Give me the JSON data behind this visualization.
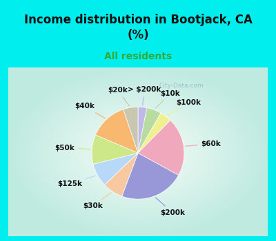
{
  "title": "Income distribution in Bootjack, CA\n(%)",
  "subtitle": "All residents",
  "title_color": "#111111",
  "subtitle_color": "#33aa33",
  "bg_cyan": "#00eeee",
  "bg_chart": "#e0f0e8",
  "watermark": "City-Data.com",
  "slices": [
    {
      "label": "> $200k",
      "value": 3,
      "color": "#c0b8e8"
    },
    {
      "label": "$10k",
      "value": 5,
      "color": "#b8dca0"
    },
    {
      "label": "$100k",
      "value": 4,
      "color": "#f0f090"
    },
    {
      "label": "$60k",
      "value": 20,
      "color": "#f0a8bc"
    },
    {
      "label": "$200k",
      "value": 22,
      "color": "#9898d8"
    },
    {
      "label": "$30k",
      "value": 7,
      "color": "#f8c8a0"
    },
    {
      "label": "$125k",
      "value": 8,
      "color": "#b8d8f8"
    },
    {
      "label": "$50k",
      "value": 10,
      "color": "#cce888"
    },
    {
      "label": "$40k",
      "value": 13,
      "color": "#f8b870"
    },
    {
      "label": "$20k",
      "value": 5,
      "color": "#c8c8b0"
    }
  ],
  "figsize": [
    4.0,
    3.5
  ],
  "dpi": 100
}
